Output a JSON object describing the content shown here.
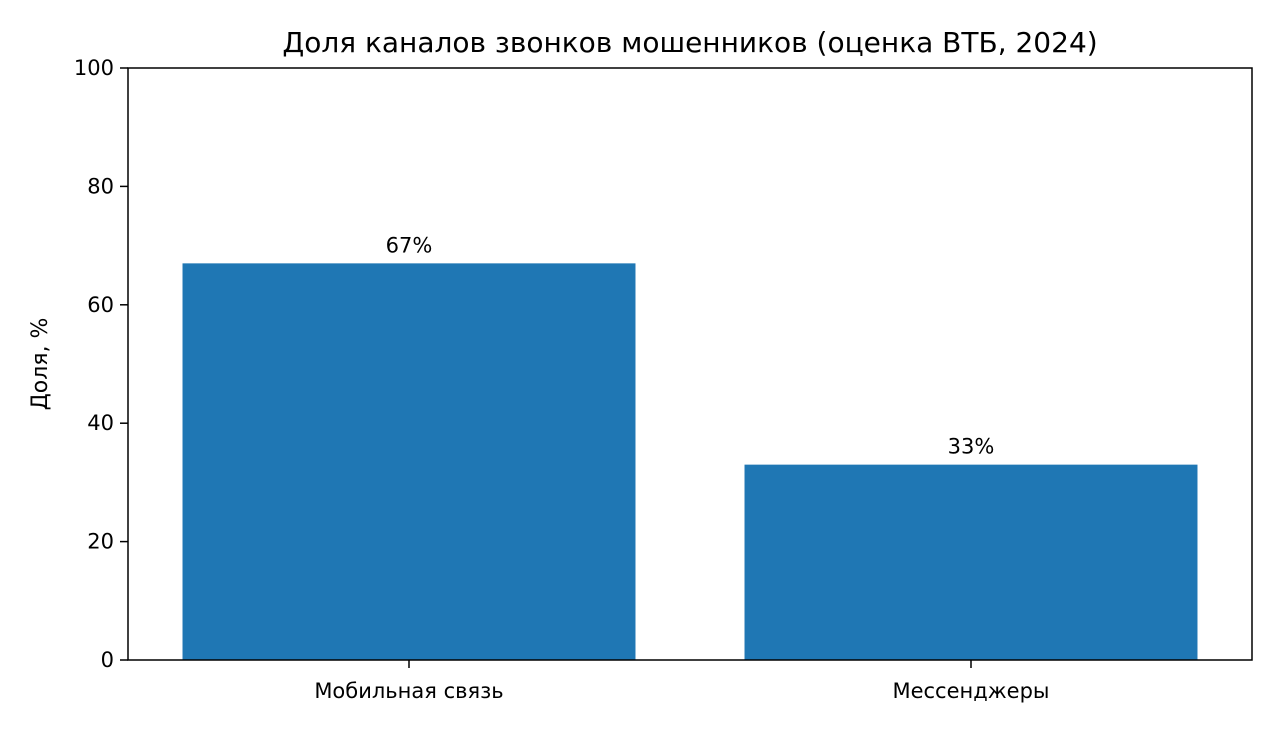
{
  "chart_data": {
    "type": "bar",
    "title": "Доля каналов звонков мошенников (оценка ВТБ, 2024)",
    "xlabel": "",
    "ylabel": "Доля, %",
    "categories": [
      "Мобильная связь",
      "Мессенджеры"
    ],
    "values": [
      67,
      33
    ],
    "data_labels": [
      "67%",
      "33%"
    ],
    "ylim": [
      0,
      100
    ],
    "yticks": [
      0,
      20,
      40,
      60,
      80,
      100
    ],
    "grid": false,
    "legend": "none",
    "colors": {
      "bar": "#1f77b4",
      "axis": "#000000",
      "background": "#ffffff"
    }
  }
}
